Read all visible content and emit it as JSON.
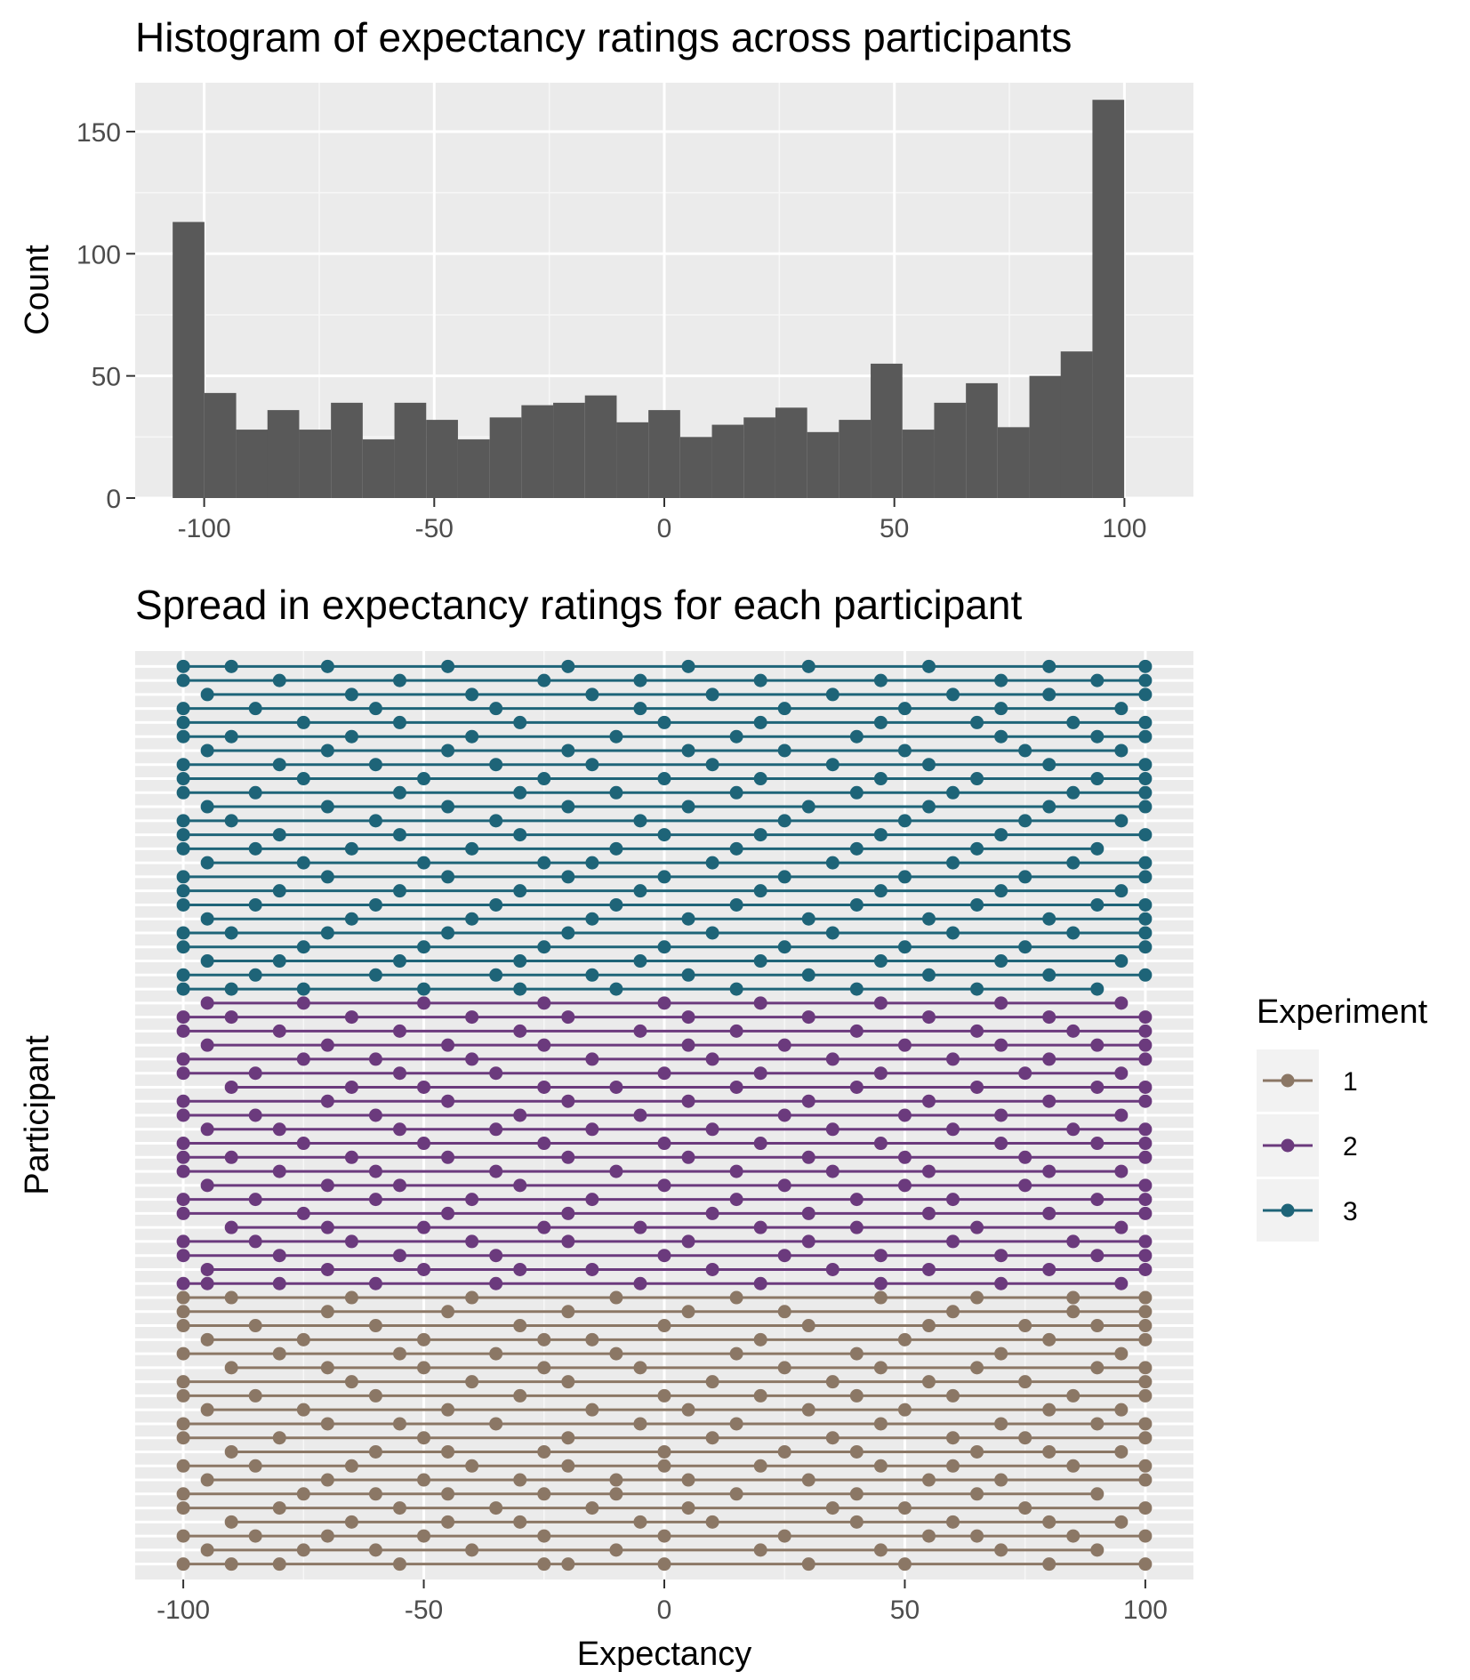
{
  "chart_data": [
    {
      "type": "bar",
      "title": "Histogram of expectancy ratings across participants",
      "xlabel": "",
      "ylabel": "Count",
      "xlim": [
        -115,
        115
      ],
      "ylim": [
        0,
        170
      ],
      "xticks": [
        -100,
        -50,
        0,
        50,
        100
      ],
      "yticks": [
        0,
        50,
        100,
        150
      ],
      "xtick_labels": [
        "-100",
        "-50",
        "0",
        "50",
        "100"
      ],
      "ytick_labels": [
        "0",
        "50",
        "100",
        "150"
      ],
      "bin_width": 6.9,
      "bin_centers": [
        -103.4,
        -96.5,
        -89.6,
        -82.8,
        -75.9,
        -69.0,
        -62.1,
        -55.2,
        -48.3,
        -41.4,
        -34.5,
        -27.6,
        -20.7,
        -13.8,
        -6.9,
        0.0,
        6.9,
        13.8,
        20.7,
        27.6,
        34.5,
        41.4,
        48.3,
        55.2,
        62.1,
        69.0,
        75.9,
        82.8,
        89.6,
        96.5
      ],
      "values": [
        113,
        43,
        28,
        36,
        28,
        39,
        24,
        39,
        32,
        24,
        33,
        38,
        39,
        42,
        31,
        36,
        25,
        30,
        33,
        37,
        27,
        32,
        55,
        28,
        39,
        47,
        29,
        50,
        60,
        163
      ],
      "grid": true,
      "bar_color": "#595959"
    },
    {
      "type": "scatter",
      "title": "Spread in expectancy ratings for each participant",
      "xlabel": "Expectancy",
      "ylabel": "Participant",
      "xlim": [
        -110,
        110
      ],
      "xticks": [
        -100,
        -50,
        0,
        50,
        100
      ],
      "xtick_labels": [
        "-100",
        "-50",
        "0",
        "50",
        "100"
      ],
      "grid": true,
      "participant_count": 65,
      "legend": {
        "title": "Experiment",
        "position": "right",
        "entries": [
          {
            "label": "1",
            "color": "#8B7765"
          },
          {
            "label": "2",
            "color": "#6B3A7D"
          },
          {
            "label": "3",
            "color": "#1E6478"
          }
        ]
      },
      "series": [
        {
          "name": "1",
          "color": "#8B7765",
          "participants": [
            [
              -100,
              -90,
              -80,
              -55,
              -25,
              0,
              -20,
              30,
              50,
              80,
              100
            ],
            [
              -95,
              -75,
              -60,
              -40,
              -10,
              20,
              45,
              70,
              90
            ],
            [
              -100,
              -85,
              -70,
              -50,
              -25,
              0,
              25,
              55,
              65,
              85,
              100
            ],
            [
              -90,
              -65,
              -45,
              -30,
              -5,
              10,
              40,
              60,
              80,
              95
            ],
            [
              -100,
              -80,
              -55,
              -35,
              -15,
              5,
              35,
              50,
              75,
              100
            ],
            [
              -100,
              -75,
              -60,
              -45,
              -25,
              -10,
              15,
              40,
              65,
              90
            ],
            [
              -95,
              -70,
              -50,
              -30,
              -10,
              5,
              30,
              55,
              70,
              100
            ],
            [
              -100,
              -85,
              -65,
              -40,
              -20,
              0,
              20,
              45,
              60,
              85,
              100
            ],
            [
              -90,
              -60,
              -45,
              -25,
              0,
              25,
              40,
              65,
              80,
              95
            ],
            [
              -100,
              -80,
              -50,
              -20,
              10,
              35,
              60,
              75,
              100
            ],
            [
              -100,
              -70,
              -55,
              -35,
              -5,
              15,
              45,
              70,
              90,
              100
            ],
            [
              -95,
              -75,
              -45,
              -15,
              5,
              30,
              50,
              80,
              95
            ],
            [
              -100,
              -85,
              -60,
              -30,
              0,
              20,
              40,
              60,
              85,
              100
            ],
            [
              -100,
              -65,
              -40,
              -20,
              10,
              35,
              55,
              75,
              100
            ],
            [
              -90,
              -70,
              -50,
              -25,
              -5,
              25,
              45,
              65,
              90,
              100
            ],
            [
              -100,
              -80,
              -55,
              -35,
              -10,
              15,
              40,
              70,
              95
            ],
            [
              -95,
              -75,
              -50,
              -25,
              -15,
              20,
              50,
              80,
              100
            ],
            [
              -100,
              -85,
              -60,
              -30,
              0,
              30,
              55,
              75,
              90,
              100
            ],
            [
              -100,
              -70,
              -45,
              -20,
              5,
              25,
              60,
              85,
              100
            ],
            [
              -100,
              -90,
              -65,
              -40,
              -10,
              15,
              45,
              65,
              85,
              100
            ]
          ]
        },
        {
          "name": "2",
          "color": "#6B3A7D",
          "participants": [
            [
              -100,
              -95,
              -80,
              -60,
              -35,
              -5,
              20,
              45,
              70,
              95
            ],
            [
              -95,
              -70,
              -50,
              -30,
              -15,
              10,
              35,
              55,
              80,
              100
            ],
            [
              -100,
              -80,
              -55,
              -35,
              0,
              25,
              45,
              70,
              90,
              100
            ],
            [
              -100,
              -85,
              -65,
              -40,
              -20,
              5,
              30,
              60,
              85,
              100
            ],
            [
              -90,
              -70,
              -50,
              -25,
              -5,
              20,
              40,
              65,
              95
            ],
            [
              -100,
              -75,
              -45,
              -20,
              10,
              30,
              55,
              80,
              100
            ],
            [
              -100,
              -85,
              -60,
              -40,
              -15,
              15,
              40,
              60,
              90,
              100
            ],
            [
              -95,
              -70,
              -55,
              -30,
              0,
              25,
              50,
              75,
              100
            ],
            [
              -100,
              -80,
              -60,
              -35,
              -10,
              15,
              35,
              55,
              80,
              95
            ],
            [
              -100,
              -90,
              -65,
              -45,
              -20,
              5,
              30,
              50,
              75,
              100
            ],
            [
              -100,
              -75,
              -50,
              -25,
              0,
              20,
              45,
              70,
              90,
              100
            ],
            [
              -95,
              -80,
              -55,
              -35,
              -15,
              10,
              35,
              60,
              85,
              100
            ],
            [
              -100,
              -85,
              -60,
              -30,
              -5,
              25,
              50,
              70,
              95
            ],
            [
              -100,
              -70,
              -45,
              -20,
              5,
              30,
              55,
              80,
              100
            ],
            [
              -90,
              -65,
              -50,
              -25,
              -10,
              15,
              40,
              65,
              90,
              100
            ],
            [
              -100,
              -85,
              -55,
              -35,
              0,
              20,
              45,
              75,
              95
            ],
            [
              -100,
              -75,
              -60,
              -40,
              -15,
              10,
              35,
              60,
              80,
              100
            ],
            [
              -95,
              -70,
              -45,
              -25,
              5,
              25,
              50,
              70,
              90,
              100
            ],
            [
              -100,
              -80,
              -55,
              -30,
              -5,
              15,
              40,
              65,
              85,
              100
            ],
            [
              -100,
              -90,
              -65,
              -40,
              -20,
              5,
              30,
              55,
              80,
              100
            ],
            [
              -95,
              -75,
              -50,
              -25,
              0,
              20,
              45,
              70,
              95
            ]
          ]
        },
        {
          "name": "3",
          "color": "#1E6478",
          "participants": [
            [
              -100,
              -90,
              -75,
              -50,
              -30,
              -10,
              15,
              40,
              65,
              90
            ],
            [
              -100,
              -85,
              -60,
              -35,
              -15,
              5,
              30,
              55,
              80,
              100
            ],
            [
              -95,
              -80,
              -55,
              -30,
              -5,
              20,
              45,
              70,
              95
            ],
            [
              -100,
              -75,
              -50,
              -25,
              0,
              25,
              50,
              75,
              100
            ],
            [
              -100,
              -90,
              -70,
              -45,
              -20,
              10,
              35,
              60,
              85,
              100
            ],
            [
              -95,
              -65,
              -40,
              -15,
              5,
              30,
              55,
              80,
              100
            ],
            [
              -100,
              -85,
              -60,
              -35,
              -10,
              15,
              40,
              65,
              90,
              100
            ],
            [
              -100,
              -80,
              -55,
              -30,
              -5,
              20,
              45,
              70,
              95
            ],
            [
              -100,
              -70,
              -45,
              -20,
              0,
              25,
              50,
              75,
              100
            ],
            [
              -95,
              -75,
              -50,
              -25,
              -15,
              10,
              35,
              60,
              85,
              100
            ],
            [
              -100,
              -85,
              -65,
              -40,
              -10,
              15,
              40,
              65,
              90
            ],
            [
              -100,
              -80,
              -55,
              -30,
              0,
              20,
              45,
              70,
              100
            ],
            [
              -100,
              -90,
              -60,
              -35,
              -5,
              25,
              50,
              75,
              95
            ],
            [
              -95,
              -70,
              -45,
              -20,
              5,
              30,
              55,
              80,
              100
            ],
            [
              -100,
              -85,
              -55,
              -30,
              -10,
              15,
              40,
              60,
              85,
              100
            ],
            [
              -100,
              -75,
              -50,
              -25,
              0,
              20,
              45,
              65,
              90,
              100
            ],
            [
              -100,
              -80,
              -60,
              -35,
              -15,
              10,
              35,
              55,
              80,
              100
            ],
            [
              -95,
              -70,
              -45,
              -20,
              5,
              25,
              50,
              75,
              95
            ],
            [
              -100,
              -90,
              -65,
              -40,
              -10,
              15,
              40,
              70,
              90,
              100
            ],
            [
              -100,
              -75,
              -55,
              -30,
              0,
              20,
              45,
              65,
              85,
              100
            ],
            [
              -100,
              -85,
              -60,
              -35,
              -5,
              25,
              50,
              70,
              95
            ],
            [
              -95,
              -65,
              -40,
              -15,
              10,
              35,
              60,
              80,
              100
            ],
            [
              -100,
              -80,
              -55,
              -25,
              -5,
              20,
              45,
              70,
              90,
              100
            ],
            [
              -100,
              -90,
              -70,
              -45,
              -20,
              5,
              30,
              55,
              80,
              100
            ]
          ]
        }
      ]
    }
  ],
  "colors": {
    "panel_bg": "#EBEBEB",
    "grid_major": "#FFFFFF",
    "axis_text": "#4D4D4D",
    "title_text": "#000000",
    "legend_key_bg": "#F2F2F2"
  }
}
